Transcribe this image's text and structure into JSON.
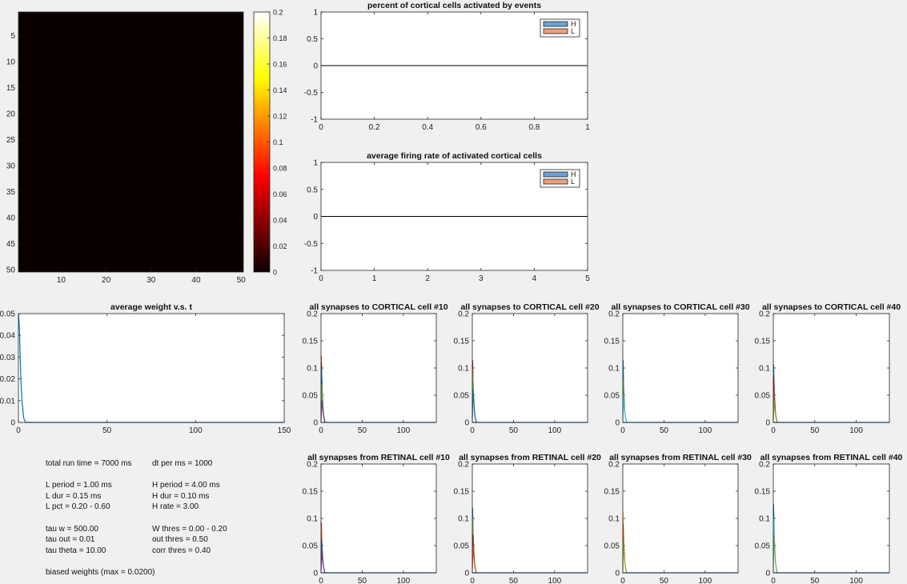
{
  "chart_data": [
    {
      "id": "heatmap",
      "type": "heatmap",
      "title": "",
      "rows": 50,
      "cols": 50,
      "uniform_value": 0,
      "x_ticks": [
        10,
        20,
        30,
        40,
        50
      ],
      "y_ticks": [
        5,
        10,
        15,
        20,
        25,
        30,
        35,
        40,
        45,
        50
      ],
      "colorbar": {
        "colormap": "hot",
        "range": [
          0,
          0.2
        ],
        "ticks": [
          "0",
          "0.02",
          "0.04",
          "0.06",
          "0.08",
          "0.1",
          "0.12",
          "0.14",
          "0.16",
          "0.18",
          "0.2"
        ]
      }
    },
    {
      "id": "pct-activated",
      "type": "bar",
      "title": "percent of cortical cells activated by events",
      "xlim": [
        0,
        1
      ],
      "ylim": [
        -1,
        1
      ],
      "x_ticks": [
        "0",
        "0.2",
        "0.4",
        "0.6",
        "0.8",
        "1"
      ],
      "y_ticks": [
        "-1",
        "-0.5",
        "0",
        "0.5",
        "1"
      ],
      "series": [
        {
          "name": "H",
          "color": "#6aa2d6",
          "values": []
        },
        {
          "name": "L",
          "color": "#ef9f78",
          "values": []
        }
      ],
      "legend": "top-right"
    },
    {
      "id": "avg-firing",
      "type": "bar",
      "title": "average firing rate of activated cortical cells",
      "xlim": [
        0,
        5
      ],
      "ylim": [
        -1,
        1
      ],
      "x_ticks": [
        "0",
        "1",
        "2",
        "3",
        "4",
        "5"
      ],
      "y_ticks": [
        "-1",
        "-0.5",
        "0",
        "0.5",
        "1"
      ],
      "series": [
        {
          "name": "H",
          "color": "#6aa2d6",
          "values": []
        },
        {
          "name": "L",
          "color": "#ef9f78",
          "values": []
        }
      ],
      "legend": "top-right"
    },
    {
      "id": "avg-weight",
      "type": "line",
      "title": "average weight v.s. t",
      "xlim": [
        0,
        150
      ],
      "ylim": [
        0,
        0.05
      ],
      "x_ticks": [
        "0",
        "50",
        "100",
        "150"
      ],
      "y_ticks": [
        "0",
        "0.01",
        "0.02",
        "0.03",
        "0.04",
        "0.05"
      ],
      "series": [
        {
          "color": "#0072bd",
          "x": [
            0,
            0.5,
            1,
            1.5,
            2,
            3,
            4,
            6,
            150
          ],
          "y": [
            0.05,
            0.045,
            0.03,
            0.018,
            0.01,
            0.002,
            0,
            0,
            0
          ]
        }
      ]
    },
    {
      "id": "syn-to-10",
      "type": "line",
      "title": "all synapses to CORTICAL cell #10",
      "xlim": [
        0,
        140
      ],
      "ylim": [
        0,
        0.2
      ],
      "x_ticks": [
        "0",
        "50",
        "100"
      ],
      "y_ticks": [
        "0",
        "0.05",
        "0.1",
        "0.15",
        "0.2"
      ],
      "spikes": [
        {
          "peak": 0.123,
          "color": "#d95319"
        },
        {
          "peak": 0.11,
          "color": "#a2142f"
        },
        {
          "peak": 0.1,
          "color": "#0072bd"
        },
        {
          "peak": 0.07,
          "color": "#77ac30"
        },
        {
          "peak": 0.04,
          "color": "#7e2f8e"
        }
      ]
    },
    {
      "id": "syn-to-20",
      "type": "line",
      "title": "all synapses to CORTICAL cell #20",
      "xlim": [
        0,
        140
      ],
      "ylim": [
        0,
        0.2
      ],
      "x_ticks": [
        "0",
        "50",
        "100"
      ],
      "y_ticks": [
        "0",
        "0.05",
        "0.1",
        "0.15",
        "0.2"
      ],
      "spikes": [
        {
          "peak": 0.115,
          "color": "#a2142f"
        },
        {
          "peak": 0.1,
          "color": "#d95319"
        },
        {
          "peak": 0.09,
          "color": "#77ac30"
        },
        {
          "peak": 0.06,
          "color": "#0072bd"
        }
      ]
    },
    {
      "id": "syn-to-30",
      "type": "line",
      "title": "all synapses to CORTICAL cell #30",
      "xlim": [
        0,
        140
      ],
      "ylim": [
        0,
        0.2
      ],
      "x_ticks": [
        "0",
        "50",
        "100"
      ],
      "y_ticks": [
        "0",
        "0.05",
        "0.1",
        "0.15",
        "0.2"
      ],
      "spikes": [
        {
          "peak": 0.115,
          "color": "#0072bd"
        },
        {
          "peak": 0.08,
          "color": "#77ac30"
        },
        {
          "peak": 0.05,
          "color": "#4dbeee"
        }
      ]
    },
    {
      "id": "syn-to-40",
      "type": "line",
      "title": "all synapses to CORTICAL cell #40",
      "xlim": [
        0,
        140
      ],
      "ylim": [
        0,
        0.2
      ],
      "x_ticks": [
        "0",
        "50",
        "100"
      ],
      "y_ticks": [
        "0",
        "0.05",
        "0.1",
        "0.15",
        "0.2"
      ],
      "spikes": [
        {
          "peak": 0.107,
          "color": "#0072bd"
        },
        {
          "peak": 0.085,
          "color": "#a2142f"
        },
        {
          "peak": 0.06,
          "color": "#d95319"
        },
        {
          "peak": 0.04,
          "color": "#77ac30"
        }
      ]
    },
    {
      "id": "syn-from-10",
      "type": "line",
      "title": "all synapses from RETINAL cell #10",
      "xlim": [
        0,
        140
      ],
      "ylim": [
        0,
        0.2
      ],
      "x_ticks": [
        "0",
        "50",
        "100"
      ],
      "y_ticks": [
        "0",
        "0.05",
        "0.1",
        "0.15",
        "0.2"
      ],
      "spikes": [
        {
          "peak": 0.093,
          "color": "#a2142f"
        },
        {
          "peak": 0.085,
          "color": "#d95319"
        },
        {
          "peak": 0.06,
          "color": "#0072bd"
        },
        {
          "peak": 0.04,
          "color": "#7e2f8e"
        }
      ]
    },
    {
      "id": "syn-from-20",
      "type": "line",
      "title": "all synapses from RETINAL cell #20",
      "xlim": [
        0,
        140
      ],
      "ylim": [
        0,
        0.2
      ],
      "x_ticks": [
        "0",
        "50",
        "100"
      ],
      "y_ticks": [
        "0",
        "0.05",
        "0.1",
        "0.15",
        "0.2"
      ],
      "spikes": [
        {
          "peak": 0.12,
          "color": "#0072bd"
        },
        {
          "peak": 0.1,
          "color": "#77ac30"
        },
        {
          "peak": 0.07,
          "color": "#a2142f"
        },
        {
          "peak": 0.05,
          "color": "#d95319"
        }
      ]
    },
    {
      "id": "syn-from-30",
      "type": "line",
      "title": "all synapses from RETINAL cell #30",
      "xlim": [
        0,
        140
      ],
      "ylim": [
        0,
        0.2
      ],
      "x_ticks": [
        "0",
        "50",
        "100"
      ],
      "y_ticks": [
        "0",
        "0.05",
        "0.1",
        "0.15",
        "0.2"
      ],
      "spikes": [
        {
          "peak": 0.112,
          "color": "#edb120"
        },
        {
          "peak": 0.09,
          "color": "#d95319"
        },
        {
          "peak": 0.06,
          "color": "#77ac30"
        }
      ]
    },
    {
      "id": "syn-from-40",
      "type": "line",
      "title": "all synapses from RETINAL cell #40",
      "xlim": [
        0,
        140
      ],
      "ylim": [
        0,
        0.2
      ],
      "x_ticks": [
        "0",
        "50",
        "100"
      ],
      "y_ticks": [
        "0",
        "0.05",
        "0.1",
        "0.15",
        "0.2"
      ],
      "spikes": [
        {
          "peak": 0.127,
          "color": "#0072bd"
        },
        {
          "peak": 0.1,
          "color": "#4dbeee"
        },
        {
          "peak": 0.07,
          "color": "#77ac30"
        }
      ]
    }
  ],
  "params": {
    "col1": [
      "total run time = 7000 ms",
      "",
      "L period = 1.00 ms",
      "L dur = 0.15 ms",
      "L pct = 0.20 - 0.60",
      "",
      "tau w = 500.00",
      "tau out = 0.01",
      "tau theta = 10.00",
      "",
      "biased weights (max = 0.0200)"
    ],
    "col2": [
      "dt per ms = 1000",
      "",
      "H period = 4.00 ms",
      "H dur = 0.10 ms",
      "H rate = 3.00",
      "",
      "W thres = 0.00 - 0.20",
      "out thres = 0.50",
      "corr thres = 0.40",
      "",
      ""
    ]
  }
}
